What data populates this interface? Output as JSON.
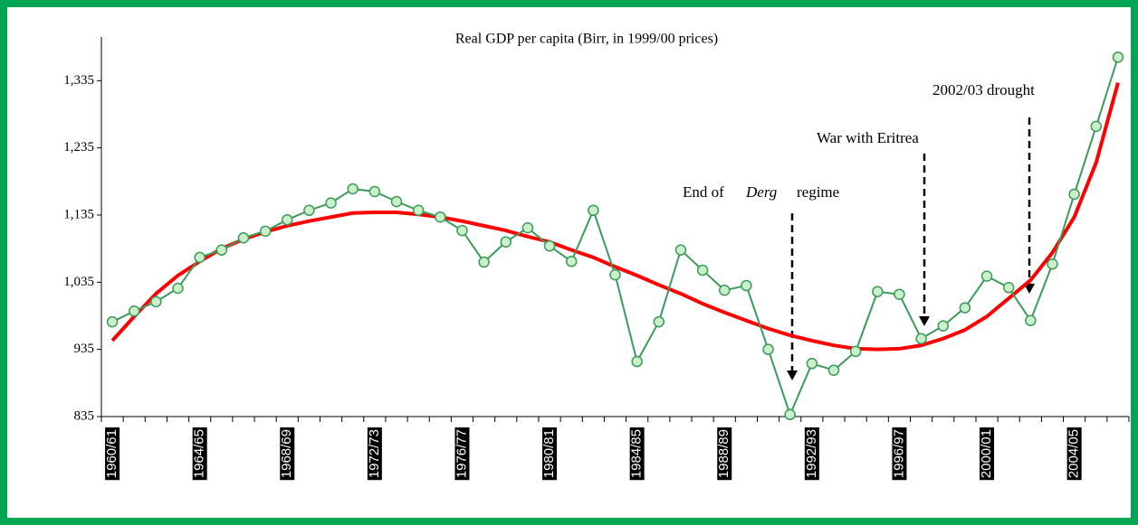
{
  "chart_data": {
    "type": "line",
    "title": "Real GDP per capita (Birr, in 1999/00 prices)",
    "categories": [
      "1960/61",
      null,
      null,
      null,
      "1964/65",
      null,
      null,
      null,
      "1968/69",
      null,
      null,
      null,
      "1972/73",
      null,
      null,
      null,
      "1976/77",
      null,
      null,
      null,
      "1980/81",
      null,
      null,
      null,
      "1984/85",
      null,
      null,
      null,
      "1988/89",
      null,
      null,
      null,
      "1992/93",
      null,
      null,
      null,
      "1996/97",
      null,
      null,
      null,
      "2000/01",
      null,
      null,
      null,
      "2004/05",
      null,
      null
    ],
    "series": [
      {
        "color": "#3c9a5a",
        "marker_fill": "#c9f0c9",
        "values": [
          976,
          992,
          1006,
          1026,
          1072,
          1083,
          1101,
          1111,
          1128,
          1142,
          1153,
          1174,
          1170,
          1155,
          1142,
          1132,
          1112,
          1065,
          1095,
          1116,
          1089,
          1066,
          1142,
          1046,
          917,
          976,
          1083,
          1053,
          1023,
          1030,
          935,
          838,
          914,
          904,
          932,
          1021,
          1017,
          951,
          970,
          997,
          1044,
          1027,
          978,
          1062,
          1166,
          1267,
          1370
        ]
      },
      {
        "color": "#ff0000",
        "values": [
          948,
          984,
          1018,
          1045,
          1066,
          1085,
          1099,
          1110,
          1119,
          1126,
          1132,
          1138,
          1139,
          1139,
          1136,
          1132,
          1126,
          1119,
          1112,
          1103,
          1095,
          1083,
          1072,
          1058,
          1045,
          1031,
          1018,
          1003,
          990,
          978,
          966,
          956,
          948,
          941,
          936,
          935,
          936,
          941,
          951,
          964,
          984,
          1011,
          1038,
          1079,
          1132,
          1213,
          1332
        ]
      }
    ],
    "ylim": [
      835,
      1400
    ],
    "yticks": [
      835,
      935,
      {
        "value": 1035,
        "label": "1,035"
      },
      {
        "value": 1135,
        "label": "1,135"
      },
      {
        "value": 1235,
        "label": "1,235"
      },
      {
        "value": 1335,
        "label": "1,335"
      }
    ],
    "annotations": [
      {
        "text": "End of",
        "italic": "Derg",
        "after": "regime"
      },
      "War with Eritrea",
      "2002/03 drought"
    ]
  }
}
